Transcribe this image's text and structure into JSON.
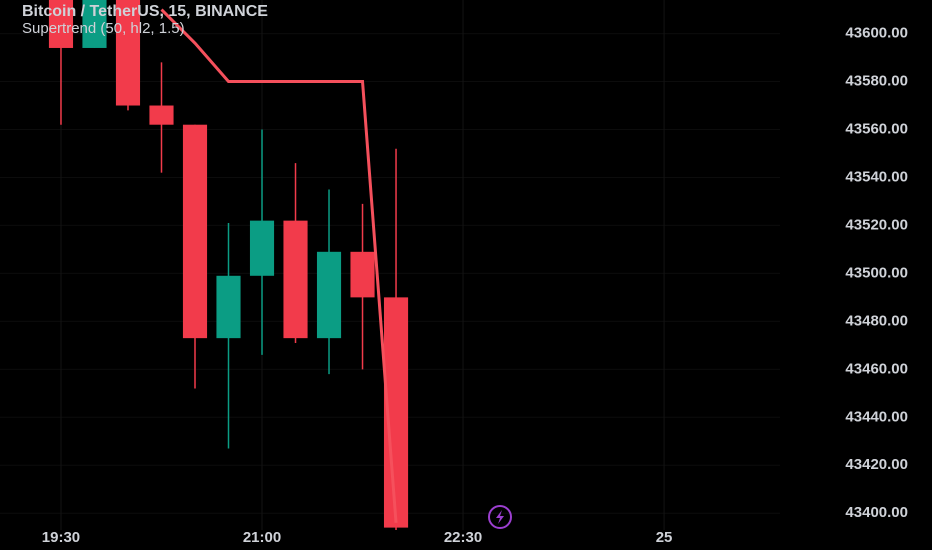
{
  "chart_data": {
    "type": "candlestick",
    "title": "Bitcoin / TetherUS, 15, BINANCE",
    "indicator": "Supertrend (50, hl2, 1.5)",
    "open": [
      43625,
      43594,
      43625,
      43570,
      43562,
      43473,
      43499,
      43522,
      43473,
      43509,
      43490
    ],
    "high": [
      43630,
      43625,
      43630,
      43588,
      43562,
      43521,
      43560,
      43546,
      43535,
      43529,
      43552
    ],
    "low": [
      43562,
      43594,
      43568,
      43542,
      43452,
      43427,
      43466,
      43471,
      43458,
      43460,
      43390
    ],
    "close": [
      43594,
      43620,
      43570,
      43562,
      43473,
      43499,
      43522,
      43473,
      43509,
      43490,
      43394
    ],
    "supertrend": [
      null,
      null,
      null,
      43610,
      43596,
      43580,
      43580,
      43580,
      43580,
      43580,
      43396
    ],
    "up_color": "#0b9d84",
    "down_color": "#f23b4b",
    "supertrend_color": "#f5505c",
    "xlim": [
      -1.82,
      21.46
    ],
    "xticks": [
      {
        "value": 0,
        "label": "19:30"
      },
      {
        "value": 6,
        "label": "21:00"
      },
      {
        "value": 12,
        "label": "22:30"
      },
      {
        "value": 18,
        "label": "25"
      }
    ],
    "ylim": [
      43393,
      43614
    ],
    "yticks": [
      {
        "value": 43400,
        "label": "43400.00"
      },
      {
        "value": 43420,
        "label": "43420.00"
      },
      {
        "value": 43440,
        "label": "43440.00"
      },
      {
        "value": 43460,
        "label": "43460.00"
      },
      {
        "value": 43480,
        "label": "43480.00"
      },
      {
        "value": 43500,
        "label": "43500.00"
      },
      {
        "value": 43520,
        "label": "43520.00"
      },
      {
        "value": 43540,
        "label": "43540.00"
      },
      {
        "value": 43560,
        "label": "43560.00"
      },
      {
        "value": 43580,
        "label": "43580.00"
      },
      {
        "value": 43600,
        "label": "43600.00"
      }
    ],
    "grid": true
  }
}
